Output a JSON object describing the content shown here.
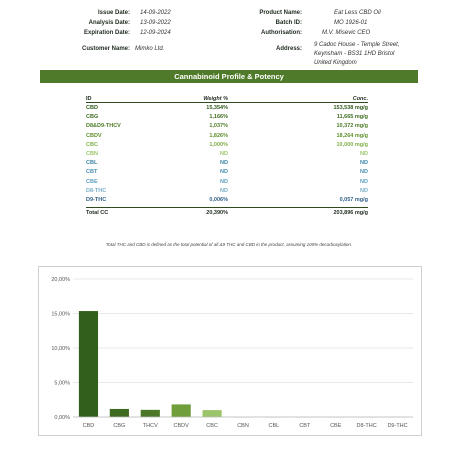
{
  "header": {
    "issue_date_label": "Issue Date:",
    "issue_date": "14-09-2022",
    "analysis_date_label": "Analysis Date:",
    "analysis_date": "13-09-2022",
    "expiration_date_label": "Expiration Date:",
    "expiration_date": "12-09-2024",
    "customer_name_label": "Customer Name:",
    "customer_name": "Mimko Ltd.",
    "product_name_label": "Product Name:",
    "product_name": "Eat Less CBD Oil",
    "batch_id_label": "Batch ID:",
    "batch_id": "MO 1926-01",
    "authorisation_label": "Authorisation:",
    "authorisation": "M.V. Misevic CEO",
    "address_label": "Address:",
    "address_line1": "9 Cadoc House - Temple Street,",
    "address_line2": "Keynsham - BS31 1HD Bristol",
    "address_line3": "United Kingdom"
  },
  "profile": {
    "title": "Cannabinoid Profile & Potency",
    "columns": [
      "ID",
      "Weight %",
      "Conc."
    ],
    "rows": [
      {
        "id": "CBD",
        "weight": "15,354%",
        "conc": "153,538 mg/g",
        "color": "#2f5a1a"
      },
      {
        "id": "CBG",
        "weight": "1,166%",
        "conc": "11,665 mg/g",
        "color": "#3d6b20"
      },
      {
        "id": "D8&D9-THCV",
        "weight": "1,037%",
        "conc": "10,372 mg/g",
        "color": "#4d7b25"
      },
      {
        "id": "CBDV",
        "weight": "1,826%",
        "conc": "18,264 mg/g",
        "color": "#5f8f2b"
      },
      {
        "id": "CBC",
        "weight": "1,000%",
        "conc": "10,000 mg/g",
        "color": "#7fae47"
      },
      {
        "id": "CBN",
        "weight": "ND",
        "conc": "ND",
        "color": "#9ac56a"
      },
      {
        "id": "CBL",
        "weight": "ND",
        "conc": "ND",
        "color": "#3b83a6"
      },
      {
        "id": "CBT",
        "weight": "ND",
        "conc": "ND",
        "color": "#4a8fb0"
      },
      {
        "id": "CBE",
        "weight": "ND",
        "conc": "ND",
        "color": "#5e9dbb"
      },
      {
        "id": "D8-THC",
        "weight": "ND",
        "conc": "ND",
        "color": "#7aaec7"
      },
      {
        "id": "D9-THC",
        "weight": "0,006%",
        "conc": "0,057 mg/g",
        "color": "#2f5f86"
      }
    ],
    "total_label": "Total CC",
    "total_weight": "20,390%",
    "total_conc": "203,896 mg/g"
  },
  "note": "Total THC and CBD is defined as the total potential of all Δ9 THC and CBD in the product, assuming 100% decarboxylation.",
  "chart_data": {
    "type": "bar",
    "categories": [
      "CBD",
      "CBG",
      "THCV",
      "CBDV",
      "CBC",
      "CBN",
      "CBL",
      "CBT",
      "CBE",
      "D8-THC",
      "D9-THC"
    ],
    "values": [
      15.354,
      1.166,
      1.037,
      1.826,
      1.0,
      0,
      0,
      0,
      0,
      0,
      0.006
    ],
    "colors": [
      "#335f1d",
      "#3f6a22",
      "#4a7728",
      "#6f9e3b",
      "#9ac56a",
      "#9ac56a",
      "#9ac56a",
      "#9ac56a",
      "#9ac56a",
      "#9ac56a",
      "#9ac56a"
    ],
    "yticks": [
      "0,00%",
      "5,00%",
      "10,00%",
      "15,00%",
      "20,00%"
    ],
    "ylim": [
      0,
      20
    ],
    "grid": true
  }
}
